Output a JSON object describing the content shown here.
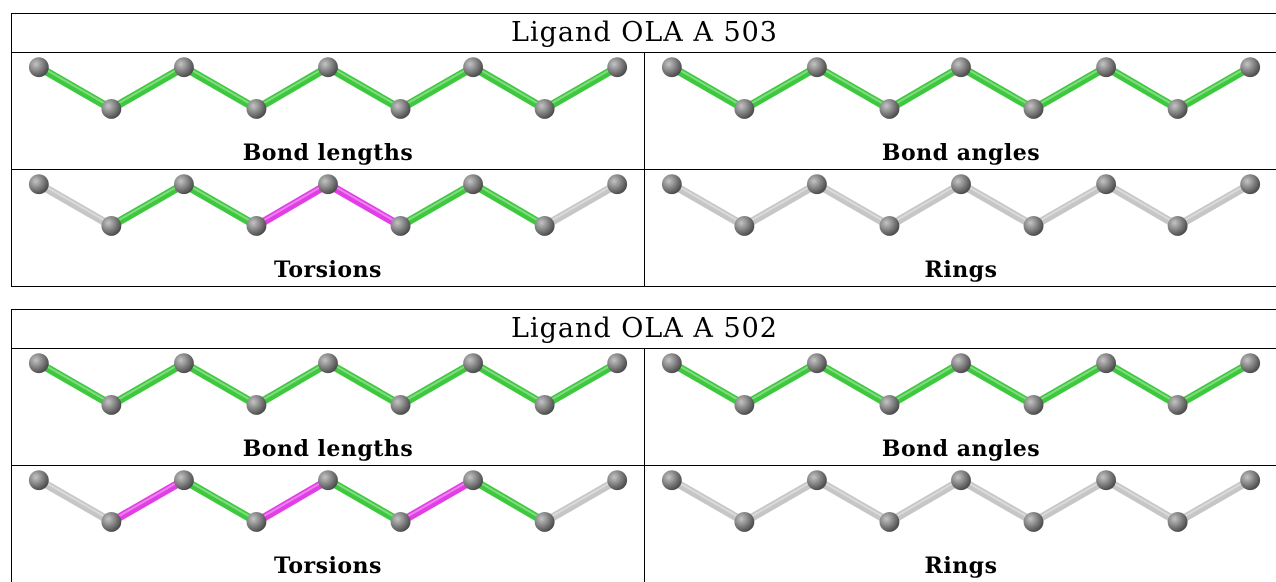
{
  "colors": {
    "pass": "#3ec83e",
    "outlier": "#e23ee6",
    "neutral": "#c6c6c6",
    "atom": "#7a7a7a"
  },
  "ligands": [
    {
      "title": "Ligand OLA A 503",
      "panels": [
        {
          "caption": "Bond lengths",
          "bonds": [
            "pass",
            "pass",
            "pass",
            "pass",
            "pass",
            "pass",
            "pass",
            "pass"
          ]
        },
        {
          "caption": "Bond angles",
          "bonds": [
            "pass",
            "pass",
            "pass",
            "pass",
            "pass",
            "pass",
            "pass",
            "pass"
          ]
        },
        {
          "caption": "Torsions",
          "bonds": [
            "neutral",
            "pass",
            "pass",
            "outlier",
            "outlier",
            "pass",
            "pass",
            "neutral"
          ]
        },
        {
          "caption": "Rings",
          "bonds": [
            "neutral",
            "neutral",
            "neutral",
            "neutral",
            "neutral",
            "neutral",
            "neutral",
            "neutral"
          ]
        }
      ]
    },
    {
      "title": "Ligand OLA A 502",
      "panels": [
        {
          "caption": "Bond lengths",
          "bonds": [
            "pass",
            "pass",
            "pass",
            "pass",
            "pass",
            "pass",
            "pass",
            "pass"
          ]
        },
        {
          "caption": "Bond angles",
          "bonds": [
            "pass",
            "pass",
            "pass",
            "pass",
            "pass",
            "pass",
            "pass",
            "pass"
          ]
        },
        {
          "caption": "Torsions",
          "bonds": [
            "neutral",
            "outlier",
            "pass",
            "outlier",
            "pass",
            "outlier",
            "pass",
            "neutral"
          ]
        },
        {
          "caption": "Rings",
          "bonds": [
            "neutral",
            "neutral",
            "neutral",
            "neutral",
            "neutral",
            "neutral",
            "neutral",
            "neutral"
          ]
        }
      ]
    }
  ]
}
